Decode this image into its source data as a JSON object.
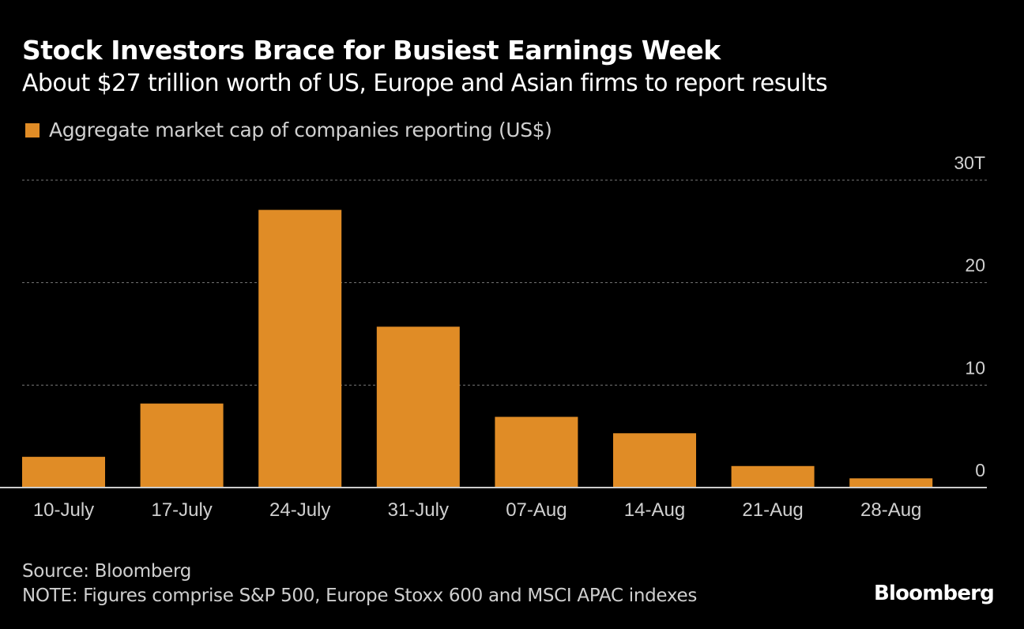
{
  "chart_data": {
    "type": "bar",
    "title": "Stock Investors Brace for Busiest Earnings Week",
    "subtitle": "About $27 trillion worth of US, Europe and Asian firms to report results",
    "legend": [
      "Aggregate market cap of companies reporting (US$)"
    ],
    "categories": [
      "10-July",
      "17-July",
      "24-July",
      "31-July",
      "07-Aug",
      "14-Aug",
      "21-Aug",
      "28-Aug"
    ],
    "series": [
      {
        "name": "Aggregate market cap of companies reporting (US$)",
        "values": [
          3.0,
          8.2,
          27.1,
          15.7,
          6.9,
          5.3,
          2.1,
          0.9
        ]
      }
    ],
    "ylim": [
      0,
      30
    ],
    "yticks": [
      0,
      10,
      20,
      30
    ],
    "ytick_labels": [
      "0",
      "10",
      "20",
      "30T"
    ],
    "grid": true,
    "legend_position": "top-left",
    "ylabel": "",
    "xlabel": "",
    "color": "#e08c26"
  },
  "footer": {
    "source": "Source: Bloomberg",
    "note": "NOTE: Figures comprise S&P 500, Europe Stoxx 600 and MSCI APAC indexes",
    "logo": "Bloomberg"
  }
}
